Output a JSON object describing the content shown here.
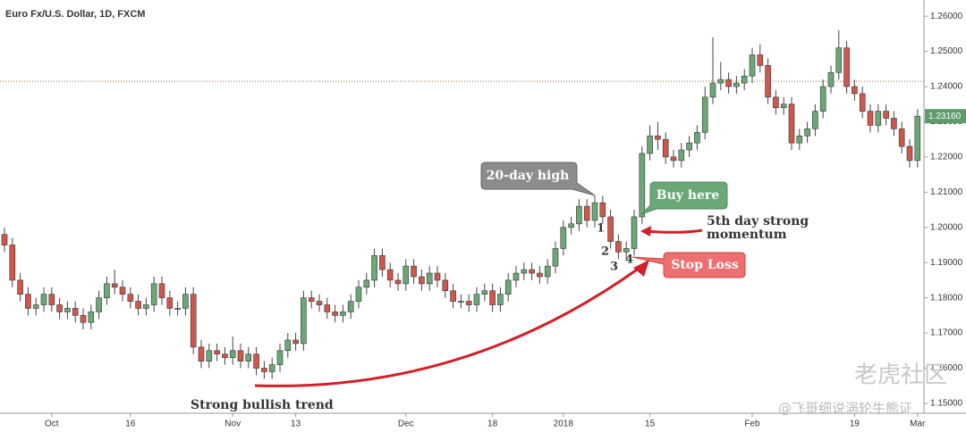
{
  "chart_data": {
    "type": "candlestick",
    "title": "Euro Fx/U.S. Dollar, 1D, FXCM",
    "categories": [
      null,
      null,
      null,
      null,
      null,
      null,
      "Oct",
      null,
      null,
      null,
      null,
      null,
      null,
      null,
      null,
      null,
      "16",
      null,
      null,
      null,
      null,
      null,
      null,
      null,
      null,
      null,
      null,
      null,
      null,
      "Nov",
      null,
      null,
      null,
      null,
      null,
      null,
      null,
      "13",
      null,
      null,
      null,
      null,
      null,
      null,
      null,
      null,
      null,
      null,
      null,
      null,
      null,
      "Dec",
      null,
      null,
      null,
      null,
      null,
      null,
      null,
      null,
      null,
      null,
      "18",
      null,
      null,
      null,
      null,
      null,
      null,
      null,
      null,
      "2018",
      null,
      null,
      null,
      null,
      null,
      null,
      null,
      null,
      null,
      null,
      "15",
      null,
      null,
      null,
      null,
      null,
      null,
      null,
      null,
      null,
      null,
      null,
      null,
      "Feb",
      null,
      null,
      null,
      null,
      null,
      null,
      null,
      null,
      null,
      null,
      null,
      null,
      "19",
      null,
      null,
      null,
      null,
      null,
      null,
      null,
      "Mar"
    ],
    "open": [
      1.198,
      1.195,
      1.185,
      1.181,
      1.177,
      1.178,
      1.181,
      1.178,
      1.176,
      1.177,
      1.175,
      1.173,
      1.176,
      1.18,
      1.184,
      1.183,
      1.181,
      1.179,
      1.177,
      1.178,
      1.184,
      1.18,
      1.177,
      1.177,
      1.181,
      1.166,
      1.162,
      1.165,
      1.164,
      1.163,
      1.165,
      1.162,
      1.164,
      1.16,
      1.159,
      1.161,
      1.165,
      1.168,
      1.167,
      1.18,
      1.179,
      1.178,
      1.176,
      1.175,
      1.176,
      1.179,
      1.183,
      1.185,
      1.192,
      1.188,
      1.185,
      1.184,
      1.189,
      1.186,
      1.184,
      1.187,
      1.185,
      1.182,
      1.179,
      1.179,
      1.178,
      1.181,
      1.182,
      1.178,
      1.181,
      1.185,
      1.187,
      1.188,
      1.187,
      1.186,
      1.189,
      1.194,
      1.2,
      1.201,
      1.206,
      1.202,
      1.207,
      1.203,
      1.196,
      1.193,
      1.194,
      1.203,
      1.221,
      1.226,
      1.225,
      1.22,
      1.219,
      1.222,
      1.224,
      1.227,
      1.237,
      1.241,
      1.242,
      1.24,
      1.241,
      1.243,
      1.249,
      1.246,
      1.237,
      1.234,
      1.235,
      1.224,
      1.226,
      1.228,
      1.233,
      1.24,
      1.244,
      1.251,
      1.24,
      1.238,
      1.233,
      1.229,
      1.233,
      1.231,
      1.228,
      1.223,
      1.219
    ],
    "high": [
      1.2,
      1.197,
      1.187,
      1.183,
      1.18,
      1.183,
      1.183,
      1.18,
      1.179,
      1.179,
      1.177,
      1.178,
      1.182,
      1.186,
      1.188,
      1.185,
      1.183,
      1.181,
      1.18,
      1.186,
      1.186,
      1.182,
      1.179,
      1.183,
      1.183,
      1.168,
      1.167,
      1.167,
      1.166,
      1.169,
      1.167,
      1.166,
      1.166,
      1.162,
      1.163,
      1.167,
      1.17,
      1.17,
      1.182,
      1.182,
      1.181,
      1.18,
      1.178,
      1.178,
      1.181,
      1.185,
      1.187,
      1.194,
      1.194,
      1.19,
      1.187,
      1.191,
      1.191,
      1.188,
      1.189,
      1.189,
      1.187,
      1.184,
      1.181,
      1.181,
      1.183,
      1.184,
      1.184,
      1.183,
      1.187,
      1.189,
      1.19,
      1.19,
      1.189,
      1.191,
      1.196,
      1.202,
      1.203,
      1.208,
      1.208,
      1.209,
      1.209,
      1.205,
      1.198,
      1.196,
      1.205,
      1.223,
      1.229,
      1.23,
      1.227,
      1.222,
      1.224,
      1.226,
      1.229,
      1.24,
      1.254,
      1.247,
      1.244,
      1.243,
      1.245,
      1.251,
      1.252,
      1.248,
      1.239,
      1.237,
      1.237,
      1.228,
      1.23,
      1.235,
      1.242,
      1.246,
      1.256,
      1.253,
      1.242,
      1.24,
      1.235,
      1.235,
      1.235,
      1.233,
      1.23,
      1.225,
      1.2336
    ],
    "low": [
      1.193,
      1.183,
      1.179,
      1.175,
      1.175,
      1.176,
      1.176,
      1.174,
      1.174,
      1.173,
      1.171,
      1.171,
      1.174,
      1.178,
      1.181,
      1.179,
      1.177,
      1.175,
      1.175,
      1.176,
      1.178,
      1.175,
      1.175,
      1.175,
      1.164,
      1.16,
      1.16,
      1.162,
      1.161,
      1.161,
      1.16,
      1.16,
      1.158,
      1.157,
      1.157,
      1.159,
      1.163,
      1.165,
      1.165,
      1.177,
      1.176,
      1.174,
      1.173,
      1.173,
      1.174,
      1.177,
      1.181,
      1.183,
      1.186,
      1.183,
      1.182,
      1.182,
      1.184,
      1.182,
      1.182,
      1.183,
      1.18,
      1.177,
      1.177,
      1.176,
      1.176,
      1.179,
      1.176,
      1.176,
      1.179,
      1.183,
      1.185,
      1.185,
      1.184,
      1.184,
      1.187,
      1.192,
      1.198,
      1.199,
      1.2,
      1.2,
      1.201,
      1.194,
      1.191,
      1.191,
      1.192,
      1.201,
      1.219,
      1.222,
      1.218,
      1.217,
      1.217,
      1.22,
      1.222,
      1.225,
      1.235,
      1.239,
      1.238,
      1.238,
      1.239,
      1.241,
      1.244,
      1.235,
      1.232,
      1.232,
      1.222,
      1.222,
      1.224,
      1.226,
      1.231,
      1.238,
      1.242,
      1.238,
      1.236,
      1.231,
      1.227,
      1.227,
      1.229,
      1.226,
      1.221,
      1.217,
      1.217
    ],
    "close": [
      1.195,
      1.185,
      1.181,
      1.177,
      1.178,
      1.181,
      1.178,
      1.176,
      1.177,
      1.175,
      1.173,
      1.176,
      1.18,
      1.184,
      1.183,
      1.181,
      1.179,
      1.177,
      1.178,
      1.184,
      1.18,
      1.177,
      1.177,
      1.181,
      1.166,
      1.162,
      1.165,
      1.164,
      1.163,
      1.165,
      1.162,
      1.164,
      1.16,
      1.159,
      1.161,
      1.165,
      1.168,
      1.167,
      1.18,
      1.179,
      1.178,
      1.176,
      1.175,
      1.176,
      1.179,
      1.183,
      1.185,
      1.192,
      1.188,
      1.185,
      1.184,
      1.189,
      1.186,
      1.184,
      1.187,
      1.185,
      1.182,
      1.179,
      1.179,
      1.178,
      1.181,
      1.182,
      1.178,
      1.181,
      1.185,
      1.187,
      1.188,
      1.187,
      1.186,
      1.189,
      1.194,
      1.2,
      1.201,
      1.206,
      1.202,
      1.207,
      1.203,
      1.196,
      1.193,
      1.194,
      1.203,
      1.221,
      1.226,
      1.225,
      1.22,
      1.219,
      1.222,
      1.224,
      1.227,
      1.237,
      1.241,
      1.242,
      1.24,
      1.241,
      1.243,
      1.249,
      1.246,
      1.237,
      1.234,
      1.235,
      1.224,
      1.226,
      1.228,
      1.233,
      1.24,
      1.244,
      1.251,
      1.24,
      1.238,
      1.233,
      1.229,
      1.233,
      1.231,
      1.228,
      1.223,
      1.219,
      1.2316
    ],
    "up_color": "#6ba877",
    "down_color": "#d0574c",
    "ylim": [
      1.1472,
      1.2646
    ],
    "yticks": [
      {
        "value": 1.15,
        "label": "1.15000"
      },
      {
        "value": 1.16,
        "label": "1.16000"
      },
      {
        "value": 1.17,
        "label": "1.17000"
      },
      {
        "value": 1.18,
        "label": "1.18000"
      },
      {
        "value": 1.19,
        "label": "1.19000"
      },
      {
        "value": 1.2,
        "label": "1.20000"
      },
      {
        "value": 1.21,
        "label": "1.21000"
      },
      {
        "value": 1.22,
        "label": "1.22000"
      },
      {
        "value": 1.23,
        "label": "1.23000"
      },
      {
        "value": 1.24,
        "label": "1.24000"
      },
      {
        "value": 1.25,
        "label": "1.25000"
      },
      {
        "value": 1.26,
        "label": "1.26000"
      }
    ],
    "grid": false,
    "ref_line": 1.2415,
    "last_price": {
      "value": 1.2316,
      "label": "1.23160"
    },
    "annotations": [
      "20-day high",
      "Buy here",
      "5th day strong",
      "momentum",
      "Stop Loss",
      "Strong bullish trend"
    ],
    "candle_labels": [
      "1",
      "2",
      "3",
      "4"
    ],
    "watermark": [
      "老虎社区",
      "@飞哥细说涡轮牛熊证"
    ]
  }
}
